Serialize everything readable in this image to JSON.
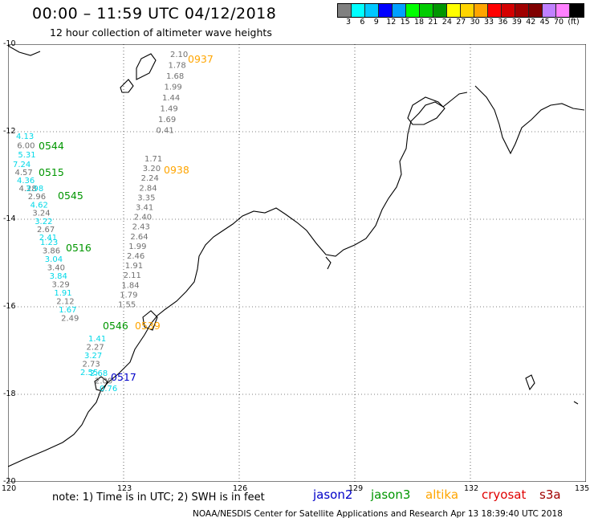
{
  "header": {
    "title": "00:00 – 11:59 UTC 04/12/2018",
    "subtitle": "12 hour collection of altimeter wave heights"
  },
  "legend": {
    "colors": [
      "#808080",
      "#00ffff",
      "#00c8ff",
      "#0000ff",
      "#00a0ff",
      "#00ff00",
      "#00cc00",
      "#009600",
      "#ffff00",
      "#ffd400",
      "#ffa500",
      "#ff0000",
      "#d40000",
      "#a00000",
      "#800000",
      "#c080ff",
      "#ff80ff",
      "#000000"
    ],
    "labels": [
      "3",
      "6",
      "9",
      "12",
      "15",
      "18",
      "21",
      "24",
      "27",
      "30",
      "33",
      "36",
      "39",
      "42",
      "45",
      "70",
      "(ft)"
    ]
  },
  "axes": {
    "lat_labels": [
      "-10",
      "-12",
      "-14",
      "-16",
      "-18",
      "-20"
    ],
    "lon_labels": [
      "120",
      "123",
      "126",
      "129",
      "132",
      "135"
    ]
  },
  "observations": [
    {
      "label": "0937",
      "color": "#ffa500",
      "values": [
        "2.10",
        "1.78",
        "1.68",
        "1.99",
        "1.44",
        "1.49",
        "1.69",
        "0.41"
      ]
    },
    {
      "label": "0938",
      "color": "#ffa500",
      "values": [
        "1.71",
        "3.20",
        "2.24",
        "2.84",
        "3.35",
        "3.41",
        "2.40",
        "2.43",
        "2.64",
        "1.99",
        "2.46",
        "1.91",
        "2.11",
        "1.84",
        "1.79",
        "1.55"
      ]
    },
    {
      "label": "0544",
      "color": "#009600",
      "values": [
        "4.13",
        "6.00",
        "5.31"
      ]
    },
    {
      "label": "0515",
      "color": "#009600",
      "values": [
        "7.24",
        "4.57",
        "4.36",
        "4.28"
      ]
    },
    {
      "label": "0545",
      "color": "#009600",
      "values": [
        "3.98",
        "2.96",
        "4.62",
        "3.24",
        "3.22",
        "2.67",
        "2.41"
      ]
    },
    {
      "label": "0516",
      "color": "#009600",
      "values": [
        "1.23",
        "3.86",
        "3.04",
        "3.40",
        "3.84",
        "3.29",
        "1.91",
        "2.12",
        "1.67",
        "2.49"
      ]
    },
    {
      "label": "0546",
      "color": "#009600",
      "values": [
        "1.41",
        "2.27",
        "3.27",
        "2.73",
        "2.55"
      ]
    },
    {
      "label": "0539",
      "color": "#ffa500",
      "values": []
    },
    {
      "label": "0517",
      "color": "#0000c8",
      "values": [
        "2.68",
        "2.00",
        "0.76"
      ]
    }
  ],
  "footer": {
    "note": "note: 1) Time is in UTC; 2) SWH is in feet",
    "satellites": [
      {
        "name": "jason2",
        "color": "#0000c8"
      },
      {
        "name": "jason3",
        "color": "#009600"
      },
      {
        "name": "altika",
        "color": "#ffa500"
      },
      {
        "name": "cryosat",
        "color": "#e00000"
      },
      {
        "name": "s3a",
        "color": "#a00000"
      }
    ],
    "credit": "NOAA/NESDIS Center for Satellite Applications and Research   Apr 13 18:39:40 UTC 2018"
  }
}
